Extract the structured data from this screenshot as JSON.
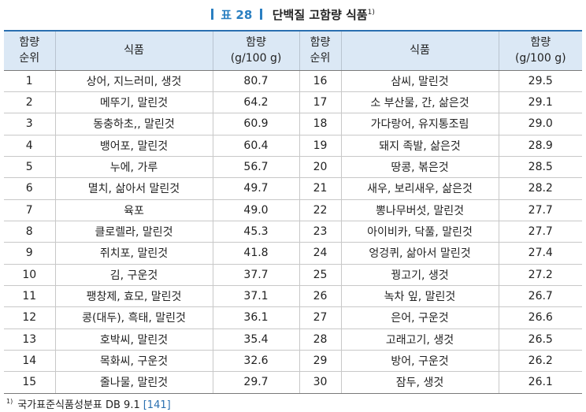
{
  "caption": {
    "label": "표 28",
    "title": "단백질 고함량 식품",
    "footnote_mark": "1)"
  },
  "table": {
    "headers": {
      "rank_line1": "함량",
      "rank_line2": "순위",
      "food": "식품",
      "amount_line1": "함량",
      "amount_line2": "(g/100 g)"
    },
    "rows": [
      {
        "rank": "1",
        "food": "상어, 지느러미, 생것",
        "amount": "80.7",
        "rank2": "16",
        "food2": "삼씨, 말린것",
        "amount2": "29.5"
      },
      {
        "rank": "2",
        "food": "메뚜기, 말린것",
        "amount": "64.2",
        "rank2": "17",
        "food2": "소 부산물, 간, 삶은것",
        "amount2": "29.1"
      },
      {
        "rank": "3",
        "food": "동충하초,, 말린것",
        "amount": "60.9",
        "rank2": "18",
        "food2": "가다랑어, 유지통조림",
        "amount2": "29.0"
      },
      {
        "rank": "4",
        "food": "뱅어포, 말린것",
        "amount": "60.4",
        "rank2": "19",
        "food2": "돼지 족발, 삶은것",
        "amount2": "28.9"
      },
      {
        "rank": "5",
        "food": "누에, 가루",
        "amount": "56.7",
        "rank2": "20",
        "food2": "땅콩, 볶은것",
        "amount2": "28.5"
      },
      {
        "rank": "6",
        "food": "멸치, 삶아서 말린것",
        "amount": "49.7",
        "rank2": "21",
        "food2": "새우, 보리새우, 삶은것",
        "amount2": "28.2"
      },
      {
        "rank": "7",
        "food": "육포",
        "amount": "49.0",
        "rank2": "22",
        "food2": "뽕나무버섯, 말린것",
        "amount2": "27.7"
      },
      {
        "rank": "8",
        "food": "클로렐라, 말린것",
        "amount": "45.3",
        "rank2": "23",
        "food2": "아이비카, 닥풀, 말린것",
        "amount2": "27.7"
      },
      {
        "rank": "9",
        "food": "쥐치포, 말린것",
        "amount": "41.8",
        "rank2": "24",
        "food2": "엉겅퀴, 삶아서 말린것",
        "amount2": "27.4"
      },
      {
        "rank": "10",
        "food": "김, 구운것",
        "amount": "37.7",
        "rank2": "25",
        "food2": "꿩고기, 생것",
        "amount2": "27.2"
      },
      {
        "rank": "11",
        "food": "팽창제, 효모, 말린것",
        "amount": "37.1",
        "rank2": "26",
        "food2": "녹차 잎, 말린것",
        "amount2": "26.7"
      },
      {
        "rank": "12",
        "food": "콩(대두), 흑태, 말린것",
        "amount": "36.1",
        "rank2": "27",
        "food2": "은어, 구운것",
        "amount2": "26.6"
      },
      {
        "rank": "13",
        "food": "호박씨, 말린것",
        "amount": "35.4",
        "rank2": "28",
        "food2": "고래고기, 생것",
        "amount2": "26.5"
      },
      {
        "rank": "14",
        "food": "목화씨, 구운것",
        "amount": "32.6",
        "rank2": "29",
        "food2": "방어, 구운것",
        "amount2": "26.2"
      },
      {
        "rank": "15",
        "food": "줄나물, 말린것",
        "amount": "29.7",
        "rank2": "30",
        "food2": "잠두, 생것",
        "amount2": "26.1"
      }
    ]
  },
  "footnote": {
    "mark": "1)",
    "text": "국가표준식품성분표 DB 9.1",
    "ref": "[141]"
  },
  "colors": {
    "accent": "#2a7fc1",
    "header_bg": "#dbe8f5",
    "ref_link": "#2a6fb0"
  }
}
